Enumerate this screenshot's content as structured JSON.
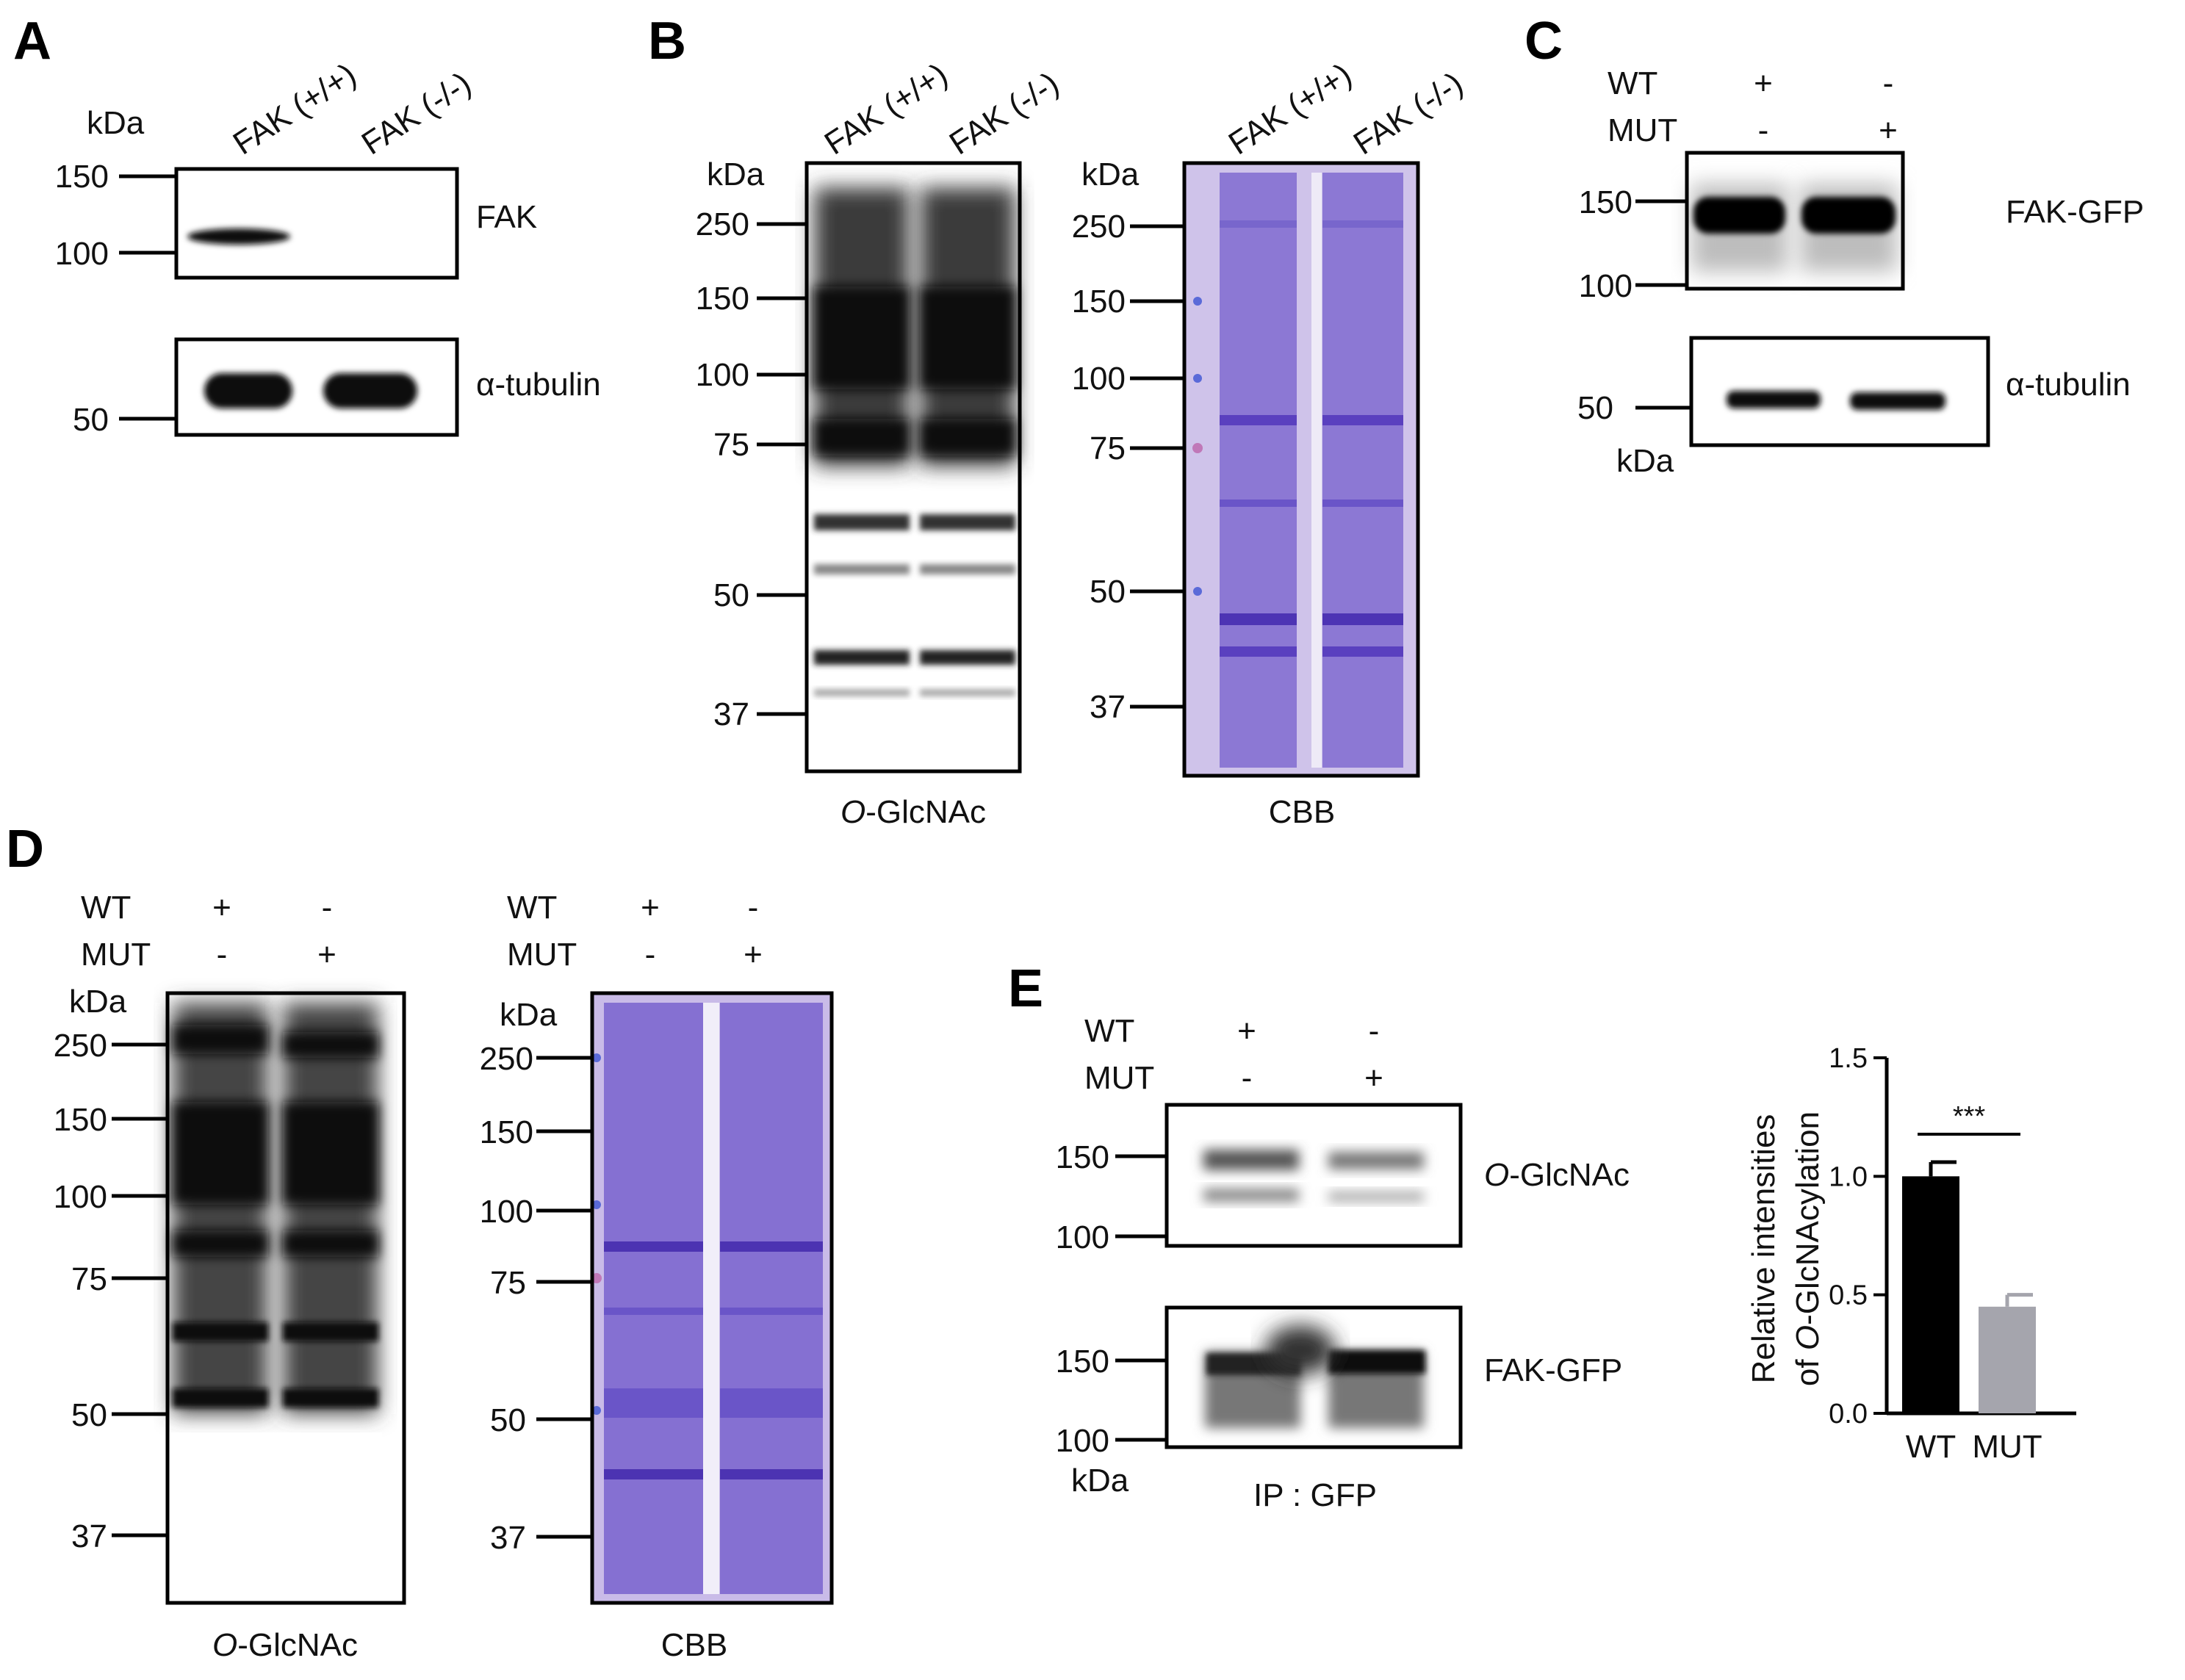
{
  "panels": {
    "A": {
      "label": "A",
      "kda": "kDa",
      "lanes": [
        "FAK (+/+)",
        "FAK (-/-)"
      ],
      "markers_top": [
        "150",
        "100"
      ],
      "markers_bottom": [
        "50"
      ],
      "blot_top": "FAK",
      "blot_bottom": "α-tubulin"
    },
    "B": {
      "label": "B",
      "kda": "kDa",
      "lanes": [
        "FAK (+/+)",
        "FAK (-/-)"
      ],
      "markers": [
        "250",
        "150",
        "100",
        "75",
        "50",
        "37"
      ],
      "caption_left_italic": "O",
      "caption_left_rest": "-GlcNAc",
      "caption_right": "CBB"
    },
    "C": {
      "label": "C",
      "row_wt": {
        "name": "WT",
        "lane1": "+",
        "lane2": "-"
      },
      "row_mut": {
        "name": "MUT",
        "lane1": "-",
        "lane2": "+"
      },
      "markers_top": [
        "150",
        "100"
      ],
      "markers_bottom": [
        "50"
      ],
      "kda": "kDa",
      "blot_top": "FAK-GFP",
      "blot_bottom": "α-tubulin"
    },
    "D": {
      "label": "D",
      "row_wt": {
        "name": "WT",
        "lane1": "+",
        "lane2": "-"
      },
      "row_mut": {
        "name": "MUT",
        "lane1": "-",
        "lane2": "+"
      },
      "kda": "kDa",
      "markers": [
        "250",
        "150",
        "100",
        "75",
        "50",
        "37"
      ],
      "caption_left_italic": "O",
      "caption_left_rest": "-GlcNAc",
      "caption_right": "CBB"
    },
    "E": {
      "label": "E",
      "row_wt": {
        "name": "WT",
        "lane1": "+",
        "lane2": "-"
      },
      "row_mut": {
        "name": "MUT",
        "lane1": "-",
        "lane2": "+"
      },
      "markers_top": [
        "150",
        "100"
      ],
      "markers_bottom": [
        "150",
        "100"
      ],
      "kda": "kDa",
      "blot_top_italic": "O",
      "blot_top_rest": "-GlcNAc",
      "blot_bottom": "FAK-GFP",
      "ip_label": "IP : GFP"
    }
  },
  "chart_data": {
    "type": "bar",
    "categories": [
      "WT",
      "MUT"
    ],
    "values": [
      1.0,
      0.45
    ],
    "errors": [
      0.06,
      0.05
    ],
    "colors": [
      "#000000",
      "#a5a5ad"
    ],
    "ylim": [
      0,
      1.5
    ],
    "yticks": [
      "0.0",
      "0.5",
      "1.0",
      "1.5"
    ],
    "ylabel_line1": "Relative intensities",
    "ylabel_line2_prefix": "of ",
    "ylabel_line2_italic": "O",
    "ylabel_line2_rest": "-GlcNAcylation",
    "significance": "***"
  }
}
